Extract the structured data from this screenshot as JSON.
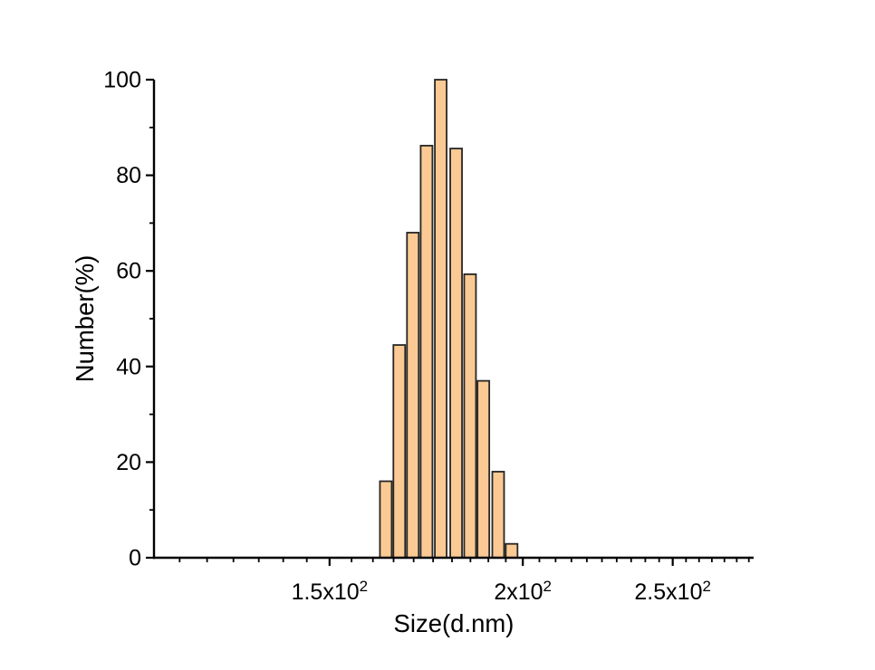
{
  "chart_data": {
    "type": "bar",
    "title": "",
    "xlabel": "Size(d.nm)",
    "ylabel": "Number(%)",
    "x_scale": "log10",
    "xlim": [
      115.5,
      282
    ],
    "ylim": [
      0,
      100
    ],
    "grid": "off",
    "legend": "none",
    "x_major_ticks": [
      {
        "value": 150,
        "label": "1.5x10",
        "exp": "2"
      },
      {
        "value": 200,
        "label": "2x10",
        "exp": "2"
      },
      {
        "value": 250,
        "label": "2.5x10",
        "exp": "2"
      }
    ],
    "x_minor_ticks": [
      120,
      125,
      130,
      135,
      140,
      145,
      155,
      160,
      165,
      170,
      175,
      180,
      185,
      190,
      195,
      205,
      210,
      215,
      220,
      225,
      230,
      235,
      240,
      245,
      255,
      260,
      265,
      270,
      275,
      280
    ],
    "y_major_ticks": [
      {
        "value": 0,
        "label": "0"
      },
      {
        "value": 20,
        "label": "20"
      },
      {
        "value": 40,
        "label": "40"
      },
      {
        "value": 60,
        "label": "60"
      },
      {
        "value": 80,
        "label": "80"
      },
      {
        "value": 100,
        "label": "100"
      }
    ],
    "y_minor_ticks": [
      10,
      30,
      50,
      70,
      90
    ],
    "bars": [
      {
        "size": 163.1,
        "value": 16.0
      },
      {
        "size": 166.4,
        "value": 44.5
      },
      {
        "size": 169.8,
        "value": 68.0
      },
      {
        "size": 173.3,
        "value": 86.2
      },
      {
        "size": 177.0,
        "value": 100.0
      },
      {
        "size": 181.1,
        "value": 85.6
      },
      {
        "size": 184.9,
        "value": 59.3
      },
      {
        "size": 188.6,
        "value": 37.0
      },
      {
        "size": 192.8,
        "value": 18.0
      },
      {
        "size": 196.7,
        "value": 2.9
      }
    ],
    "bar_log_width": 0.0076,
    "colors": {
      "bar_fill": "#FBCA94",
      "bar_stroke": "#262626",
      "axis": "#000000",
      "text": "#000000",
      "background": "#FFFFFF"
    }
  }
}
